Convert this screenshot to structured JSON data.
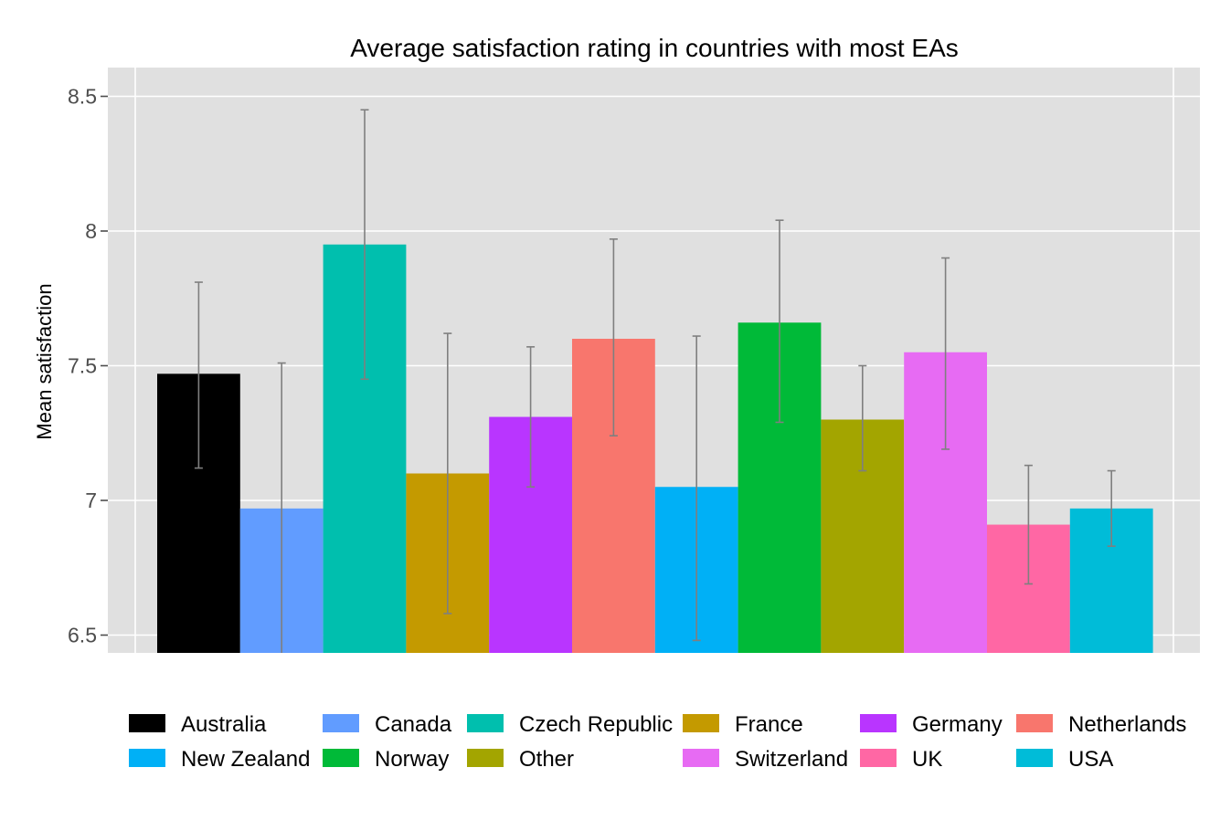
{
  "chart_data": {
    "type": "bar",
    "title": "Average satisfaction rating in countries with most EAs",
    "xlabel": "",
    "ylabel": "Mean satisfaction",
    "ylim": [
      6.5,
      8.5
    ],
    "yticks": [
      6.5,
      7,
      7.5,
      8,
      8.5
    ],
    "ytick_labels": [
      "6.5",
      "7",
      "7.5",
      "8",
      "8.5"
    ],
    "grid": true,
    "legend_position": "bottom",
    "categories": [
      "Australia",
      "Canada",
      "Czech Republic",
      "France",
      "Germany",
      "Netherlands",
      "New Zealand",
      "Norway",
      "Other",
      "Switzerland",
      "UK",
      "USA"
    ],
    "values": [
      7.47,
      6.97,
      7.95,
      7.1,
      7.31,
      7.6,
      7.05,
      7.66,
      7.3,
      7.55,
      6.91,
      6.97
    ],
    "error_low": [
      7.12,
      6.43,
      7.45,
      6.58,
      7.05,
      7.24,
      6.48,
      7.29,
      7.11,
      7.19,
      6.69,
      6.83
    ],
    "error_high": [
      7.81,
      7.51,
      8.45,
      7.62,
      7.57,
      7.97,
      7.61,
      8.04,
      7.5,
      7.9,
      7.13,
      7.11
    ],
    "colors": [
      "#000000",
      "#619CFF",
      "#00BFAE",
      "#C49A00",
      "#B935FF",
      "#F8766D",
      "#00B0F6",
      "#00BA38",
      "#A3A500",
      "#E76BF3",
      "#FF67A4",
      "#00BCD8"
    ],
    "error_bar_color": "#7f7f7f"
  }
}
